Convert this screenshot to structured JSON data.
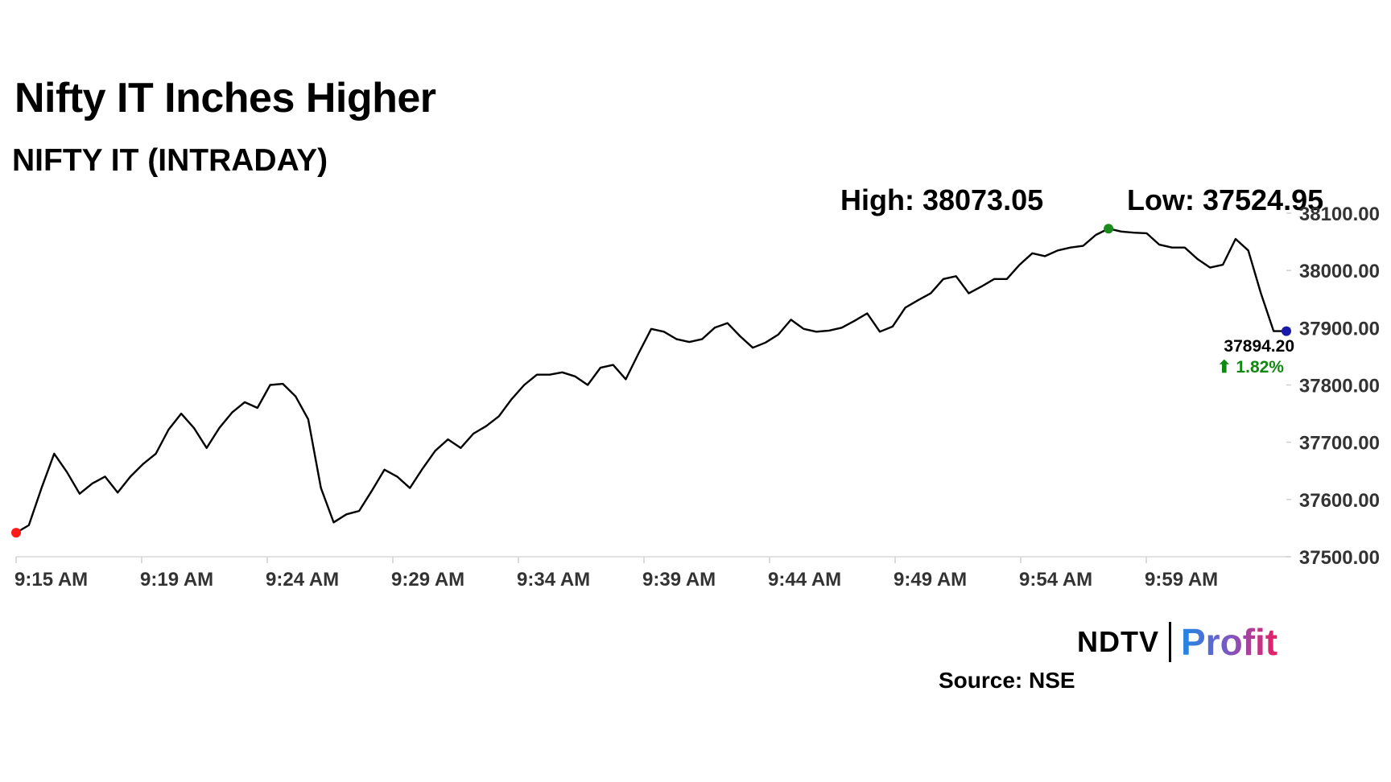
{
  "header": {
    "title": "Nifty IT Inches Higher",
    "subtitle": "NIFTY IT (INTRADAY)",
    "high_label": "High: 38073.05",
    "low_label": "Low: 37524.95"
  },
  "footer": {
    "brand_ndtv": "NDTV",
    "brand_profit": "Profit",
    "source": "Source: NSE"
  },
  "chart_data": {
    "type": "line",
    "x_tick_labels": [
      "9:15 AM",
      "9:19 AM",
      "9:24 AM",
      "9:29 AM",
      "9:34 AM",
      "9:39 AM",
      "9:44 AM",
      "9:49 AM",
      "9:54 AM",
      "9:59 AM"
    ],
    "y_tick_labels": [
      "38100.00",
      "38000.00",
      "37900.00",
      "37800.00",
      "37700.00",
      "37600.00",
      "37500.00"
    ],
    "ylim": [
      37500,
      38100
    ],
    "x_range_minutes": [
      0,
      50
    ],
    "series": [
      {
        "values_x_minutes": [
          0,
          0.5,
          1,
          1.5,
          2,
          2.5,
          3,
          3.5,
          4,
          4.5,
          5,
          5.5,
          6,
          6.5,
          7,
          7.5,
          8,
          8.5,
          9,
          9.5,
          10,
          10.5,
          11,
          11.5,
          12,
          12.5,
          13,
          13.5,
          14,
          14.5,
          15,
          15.5,
          16,
          16.5,
          17,
          17.5,
          18,
          18.5,
          19,
          19.5,
          20,
          20.5,
          21,
          21.5,
          22,
          22.5,
          23,
          23.5,
          24,
          24.5,
          25,
          25.5,
          26,
          26.5,
          27,
          27.5,
          28,
          28.5,
          29,
          29.5,
          30,
          30.5,
          31,
          31.5,
          32,
          32.5,
          33,
          33.5,
          34,
          34.5,
          35,
          35.5,
          36,
          36.5,
          37,
          37.5,
          38,
          38.5,
          39,
          39.5,
          40,
          40.5,
          41,
          41.5,
          42,
          42.5,
          43,
          43.5,
          44,
          44.5,
          45,
          45.5,
          46,
          46.5,
          47,
          47.5,
          48,
          48.5,
          49,
          49.5,
          50
        ],
        "values_y": [
          37542,
          37555,
          37620,
          37680,
          37648,
          37610,
          37628,
          37640,
          37612,
          37640,
          37662,
          37680,
          37722,
          37750,
          37725,
          37690,
          37725,
          37752,
          37770,
          37760,
          37800,
          37802,
          37780,
          37740,
          37620,
          37560,
          37574,
          37580,
          37615,
          37652,
          37640,
          37620,
          37654,
          37685,
          37705,
          37690,
          37715,
          37728,
          37745,
          37775,
          37800,
          37818,
          37818,
          37822,
          37815,
          37800,
          37830,
          37835,
          37810,
          37855,
          37898,
          37893,
          37880,
          37875,
          37880,
          37900,
          37908,
          37885,
          37865,
          37874,
          37888,
          37914,
          37898,
          37893,
          37895,
          37900,
          37912,
          37925,
          37893,
          37902,
          37935,
          37948,
          37960,
          37985,
          37990,
          37960,
          37972,
          37985,
          37985,
          38010,
          38030,
          38025,
          38035,
          38040,
          38043,
          38062,
          38073,
          38068,
          38066,
          38065,
          38045,
          38040,
          38040,
          38020,
          38005,
          38010,
          38055,
          38035,
          37960,
          37894,
          37894
        ],
        "color": "#000000"
      }
    ],
    "markers": {
      "start_color": "#ff1a1a",
      "high_color": "#1a8a1a",
      "last_color": "#1a1aaa"
    },
    "last_value_label": "37894.20",
    "change_label": "⬆ 1.82%",
    "change_color": "#118811",
    "grid": false
  }
}
